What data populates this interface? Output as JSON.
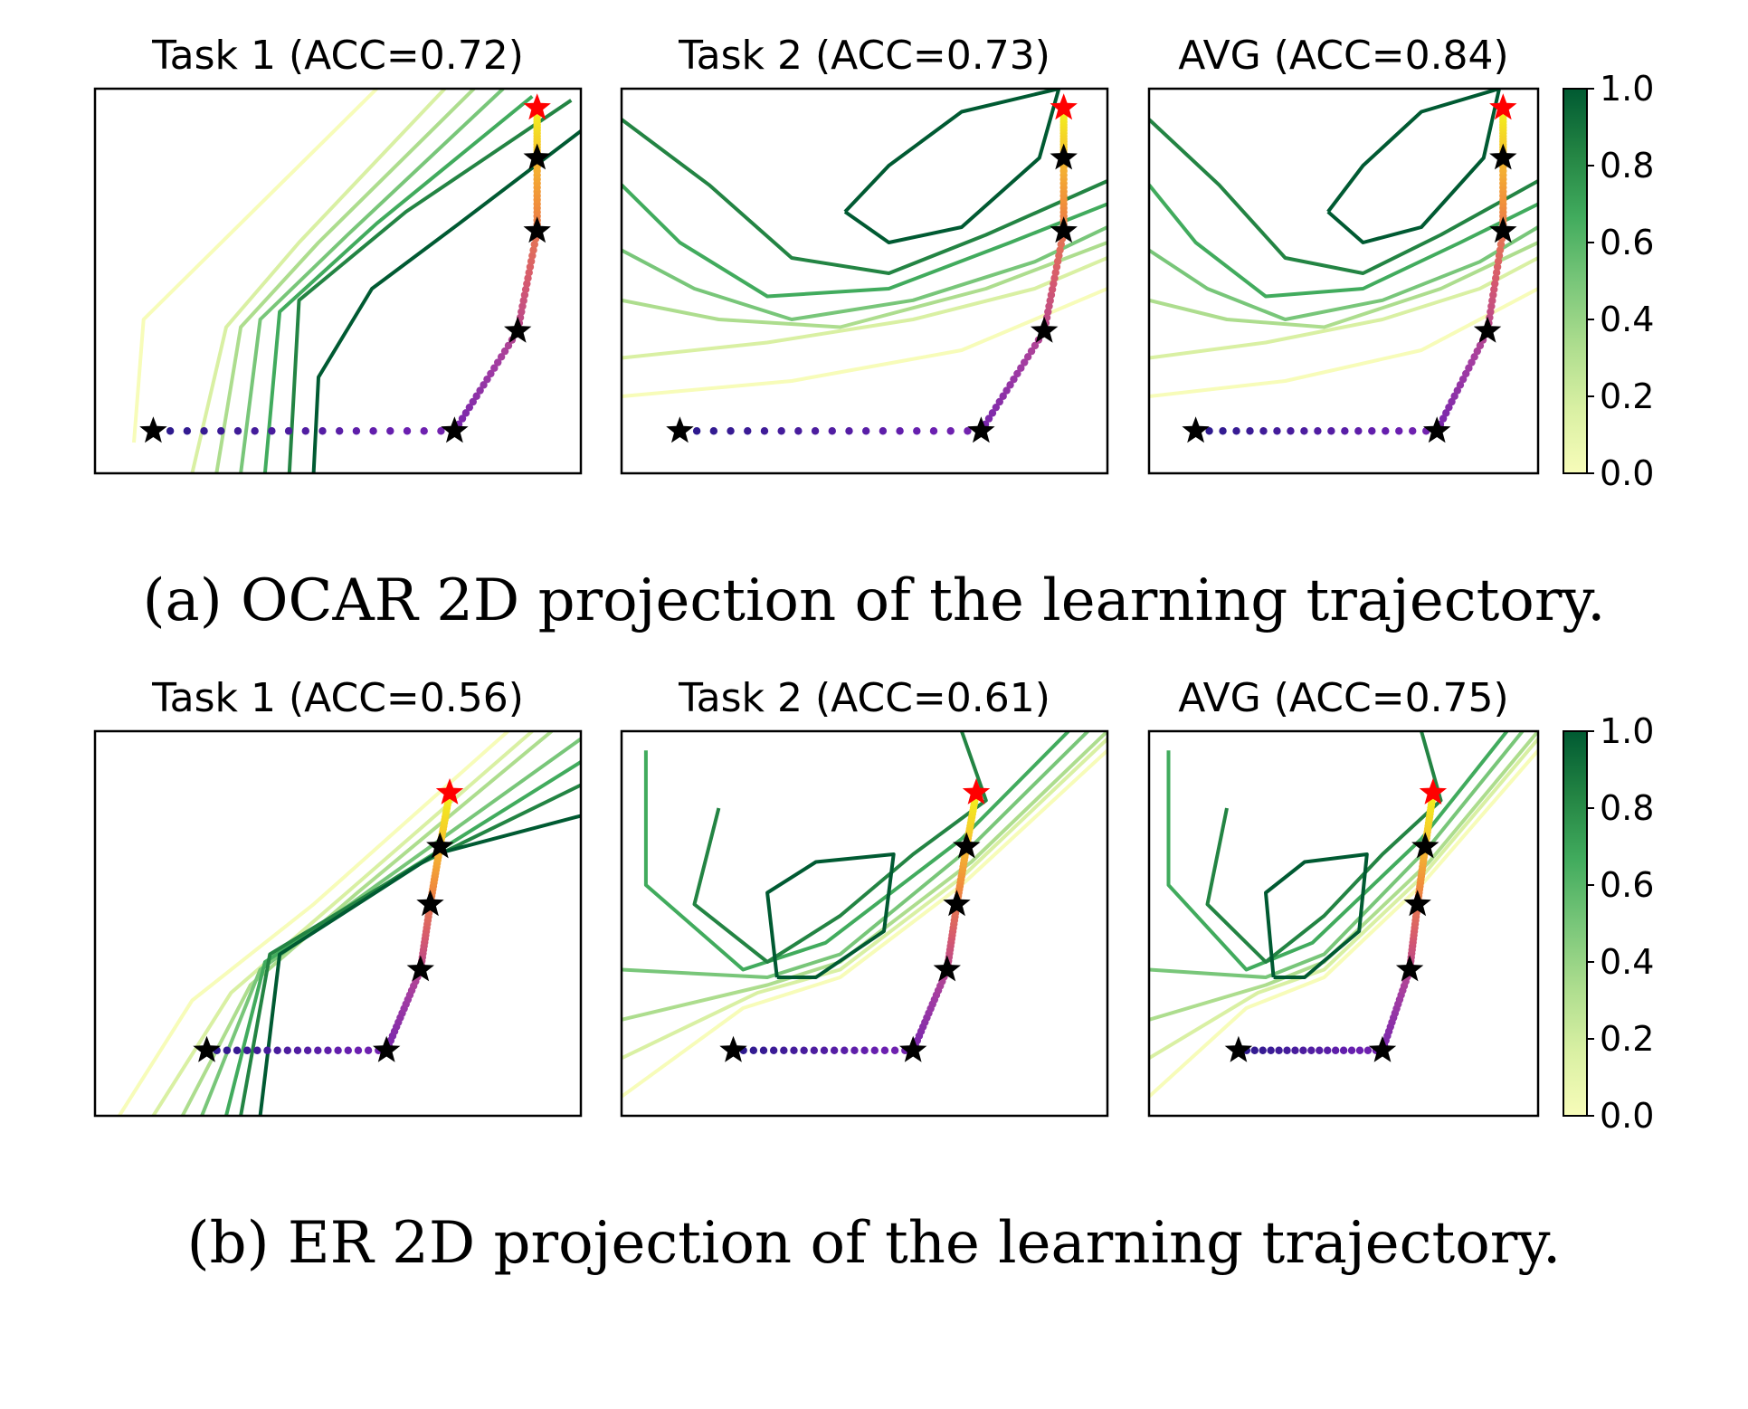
{
  "colors": {
    "contour_ramp": [
      "#f7fcb9",
      "#d9f0a3",
      "#addd8e",
      "#78c679",
      "#41ab5d",
      "#238443",
      "#005a32"
    ],
    "traj_ramp": [
      "#2a1a8c",
      "#6a1fb0",
      "#a23ca2",
      "#d5596f",
      "#f08b3c",
      "#f6c52c",
      "#f2f21c"
    ],
    "final_star": "#ff0000",
    "milestone_star": "#000000"
  },
  "colorbar_ticks": [
    "1.0",
    "0.8",
    "0.6",
    "0.4",
    "0.2",
    "0.0"
  ],
  "captions": {
    "a": "(a) OCAR 2D projection of the learning trajectory.",
    "b": "(b) ER 2D projection of the learning trajectory."
  },
  "chart_data": [
    {
      "type": "contour",
      "group": "a",
      "title": "Task 1 (ACC=0.72)",
      "colorbar": {
        "range": [
          0.0,
          1.0
        ],
        "ticks": [
          0.0,
          0.2,
          0.4,
          0.6,
          0.8,
          1.0
        ],
        "cmap": "YlGn"
      },
      "contour_levels": [
        0.1,
        0.25,
        0.4,
        0.55,
        0.7,
        0.85
      ],
      "trajectory_milestones": [
        [
          0.12,
          0.11
        ],
        [
          0.74,
          0.11
        ],
        [
          0.87,
          0.37
        ],
        [
          0.91,
          0.63
        ],
        [
          0.91,
          0.82
        ],
        [
          0.91,
          0.95
        ]
      ]
    },
    {
      "type": "contour",
      "group": "a",
      "title": "Task 2 (ACC=0.73)",
      "colorbar": {
        "range": [
          0.0,
          1.0
        ],
        "ticks": [
          0.0,
          0.2,
          0.4,
          0.6,
          0.8,
          1.0
        ],
        "cmap": "YlGn"
      },
      "contour_levels": [
        0.1,
        0.25,
        0.4,
        0.55,
        0.7,
        0.85
      ],
      "trajectory_milestones": [
        [
          0.12,
          0.11
        ],
        [
          0.74,
          0.11
        ],
        [
          0.87,
          0.37
        ],
        [
          0.91,
          0.63
        ],
        [
          0.91,
          0.82
        ],
        [
          0.91,
          0.95
        ]
      ]
    },
    {
      "type": "contour",
      "group": "a",
      "title": "AVG (ACC=0.84)",
      "colorbar": {
        "range": [
          0.0,
          1.0
        ],
        "ticks": [
          0.0,
          0.2,
          0.4,
          0.6,
          0.8,
          1.0
        ],
        "cmap": "YlGn"
      },
      "contour_levels": [
        0.1,
        0.25,
        0.4,
        0.55,
        0.7,
        0.85
      ],
      "trajectory_milestones": [
        [
          0.12,
          0.11
        ],
        [
          0.74,
          0.11
        ],
        [
          0.87,
          0.37
        ],
        [
          0.91,
          0.63
        ],
        [
          0.91,
          0.82
        ],
        [
          0.91,
          0.95
        ]
      ]
    },
    {
      "type": "contour",
      "group": "b",
      "title": "Task 1 (ACC=0.56)",
      "colorbar": {
        "range": [
          0.0,
          1.0
        ],
        "ticks": [
          0.0,
          0.2,
          0.4,
          0.6,
          0.8,
          1.0
        ],
        "cmap": "YlGn"
      },
      "contour_levels": [
        0.1,
        0.25,
        0.4,
        0.55,
        0.7,
        0.85
      ],
      "trajectory_milestones": [
        [
          0.23,
          0.17
        ],
        [
          0.6,
          0.17
        ],
        [
          0.67,
          0.38
        ],
        [
          0.69,
          0.55
        ],
        [
          0.71,
          0.7
        ],
        [
          0.73,
          0.84
        ]
      ]
    },
    {
      "type": "contour",
      "group": "b",
      "title": "Task 2 (ACC=0.61)",
      "colorbar": {
        "range": [
          0.0,
          1.0
        ],
        "ticks": [
          0.0,
          0.2,
          0.4,
          0.6,
          0.8,
          1.0
        ],
        "cmap": "YlGn"
      },
      "contour_levels": [
        0.1,
        0.25,
        0.4,
        0.55,
        0.7,
        0.85
      ],
      "trajectory_milestones": [
        [
          0.23,
          0.17
        ],
        [
          0.6,
          0.17
        ],
        [
          0.67,
          0.38
        ],
        [
          0.69,
          0.55
        ],
        [
          0.71,
          0.7
        ],
        [
          0.73,
          0.84
        ]
      ]
    },
    {
      "type": "contour",
      "group": "b",
      "title": "AVG (ACC=0.75)",
      "colorbar": {
        "range": [
          0.0,
          1.0
        ],
        "ticks": [
          0.0,
          0.2,
          0.4,
          0.6,
          0.8,
          1.0
        ],
        "cmap": "YlGn"
      },
      "contour_levels": [
        0.1,
        0.25,
        0.4,
        0.55,
        0.7,
        0.85
      ],
      "trajectory_milestones": [
        [
          0.23,
          0.17
        ],
        [
          0.6,
          0.17
        ],
        [
          0.67,
          0.38
        ],
        [
          0.69,
          0.55
        ],
        [
          0.71,
          0.7
        ],
        [
          0.73,
          0.84
        ]
      ]
    }
  ]
}
